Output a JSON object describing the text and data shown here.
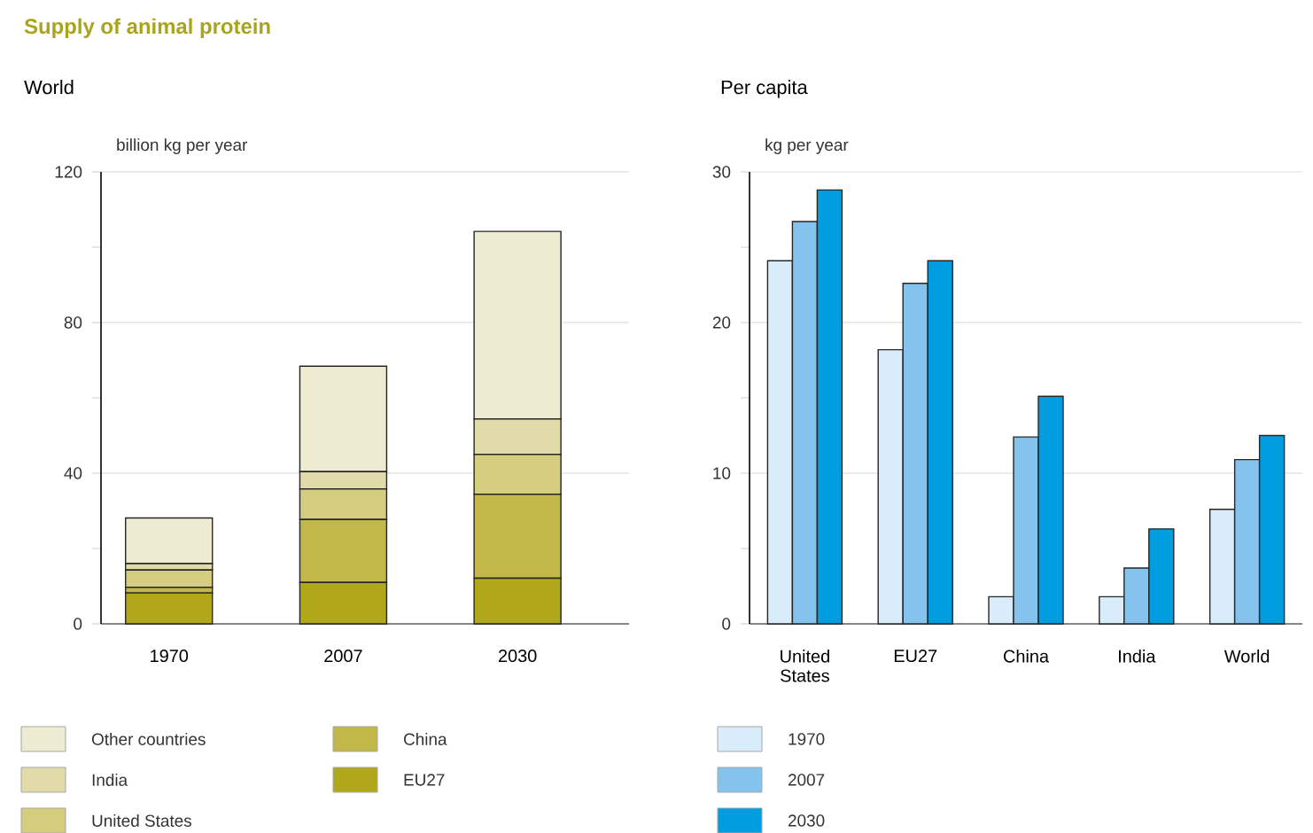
{
  "chart_data": [
    {
      "type": "bar",
      "title": "Supply of animal protein",
      "subtitle": "World",
      "ylabel": "billion kg per year",
      "stacked": true,
      "categories": [
        "1970",
        "2007",
        "2030"
      ],
      "ylim": [
        0,
        120
      ],
      "yticks": [
        0,
        {
          "value": 20,
          "label": null
        },
        40,
        {
          "value": 60,
          "label": null
        },
        80,
        {
          "value": 100,
          "label": null
        },
        120
      ],
      "grid": "y",
      "legend": "bottom",
      "series": [
        {
          "name": "EU27",
          "color": "#b0a81a",
          "values": [
            8.2,
            11.0,
            12.1
          ]
        },
        {
          "name": "China",
          "color": "#c2b849",
          "values": [
            1.5,
            16.7,
            22.3
          ]
        },
        {
          "name": "United States",
          "color": "#d5cd7e",
          "values": [
            4.6,
            8.1,
            10.6
          ]
        },
        {
          "name": "India",
          "color": "#e0dba8",
          "values": [
            1.7,
            4.6,
            9.4
          ]
        },
        {
          "name": "Other countries",
          "color": "#eeebd3",
          "values": [
            12.1,
            28.0,
            49.8
          ]
        }
      ]
    },
    {
      "type": "bar",
      "subtitle": "Per capita",
      "ylabel": "kg per year",
      "categories": [
        "United States",
        "EU27",
        "China",
        "India",
        "World"
      ],
      "ylim": [
        0,
        30
      ],
      "yticks": [
        0,
        {
          "value": 5,
          "label": null
        },
        10,
        {
          "value": 15,
          "label": null
        },
        20,
        {
          "value": 25,
          "label": null
        },
        30
      ],
      "grid": "y",
      "legend": "bottom",
      "series": [
        {
          "name": "1970",
          "color": "#d9ecf9",
          "values": [
            24.1,
            18.2,
            1.8,
            1.8,
            7.6
          ]
        },
        {
          "name": "2007",
          "color": "#84c3ee",
          "values": [
            26.7,
            22.6,
            12.4,
            3.7,
            10.9
          ]
        },
        {
          "name": "2030",
          "color": "#009ee0",
          "values": [
            28.8,
            24.1,
            15.1,
            6.3,
            12.5
          ]
        }
      ]
    }
  ]
}
